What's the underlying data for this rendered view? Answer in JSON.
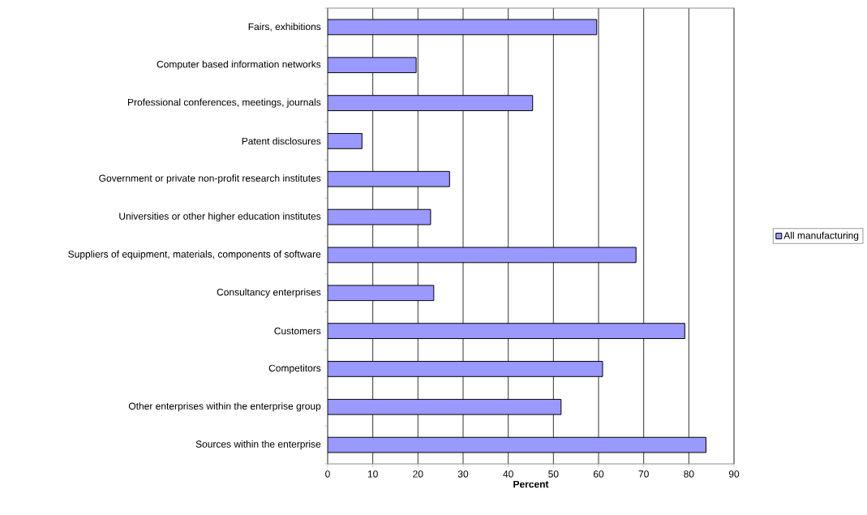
{
  "chart_data": {
    "type": "bar",
    "orientation": "horizontal",
    "xlabel": "Percent",
    "categories": [
      "Fairs, exhibitions",
      "Computer based information networks",
      "Professional conferences, meetings, journals",
      "Patent disclosures",
      "Government or private non-profit research institutes",
      "Universities or other higher education institutes",
      "Suppliers of equipment, materials, components of software",
      "Consultancy enterprises",
      "Customers",
      "Competitors",
      "Other enterprises within the enterprise group",
      "Sources within the enterprise"
    ],
    "series": [
      {
        "name": "All manufacturing",
        "color": "#9999ff",
        "values": [
          59.6,
          19.6,
          45.4,
          7.6,
          27.0,
          22.8,
          68.3,
          23.5,
          79.1,
          60.9,
          51.7,
          83.8
        ]
      }
    ],
    "xlim": [
      0,
      90
    ],
    "xticks": [
      0,
      10,
      20,
      30,
      40,
      50,
      60,
      70,
      80,
      90
    ],
    "grid": "x",
    "legend": "right"
  }
}
